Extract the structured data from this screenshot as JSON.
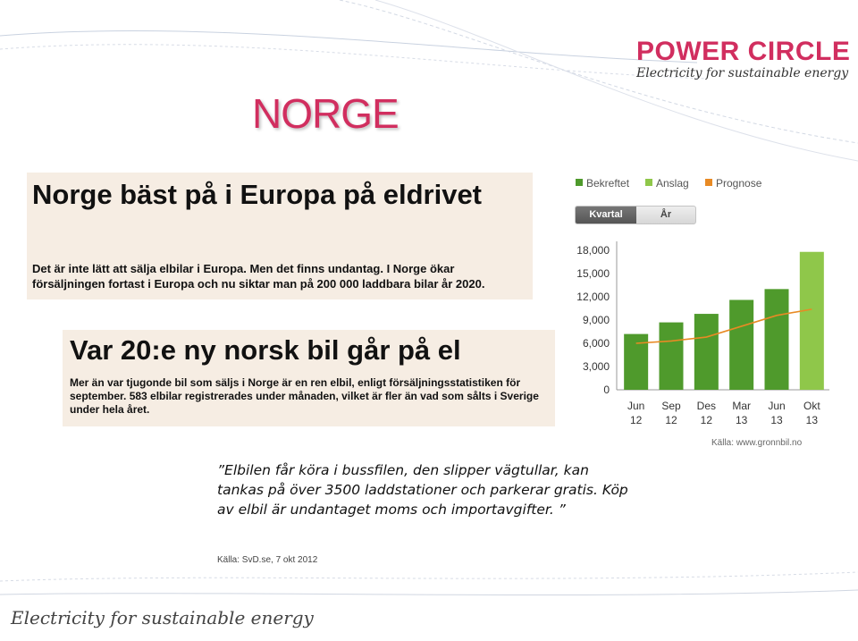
{
  "brand": {
    "name": "POWER CIRCLE",
    "tagline": "Electricity for sustainable energy",
    "color": "#d12e5f"
  },
  "slide": {
    "title": "NORGE"
  },
  "clippings": [
    {
      "headline": "Norge bäst på i Europa på eldrivet",
      "body": "Det är inte lätt att sälja elbilar i Europa. Men det finns undantag. I Norge ökar försäljningen fortast i Europa och nu siktar man på 200 000 laddbara bilar år 2020."
    },
    {
      "headline": "Var 20:e ny norsk bil går på el",
      "body": "Mer än var tjugonde bil som säljs i Norge är en ren elbil, enligt försäljningsstatistiken för september. 583 elbilar registrerades under månaden, vilket är fler än vad som sålts i Sverige under hela året."
    }
  ],
  "chart_data": {
    "type": "bar",
    "legend": [
      {
        "name": "Bekreftet",
        "color": "#4f9a2c"
      },
      {
        "name": "Anslag",
        "color": "#8fc74a"
      },
      {
        "name": "Prognose",
        "color": "#e88a24"
      }
    ],
    "toggle": [
      "Kvartal",
      "År"
    ],
    "categories": [
      [
        "Jun",
        "12"
      ],
      [
        "Sep",
        "12"
      ],
      [
        "Des",
        "12"
      ],
      [
        "Mar",
        "13"
      ],
      [
        "Jun",
        "13"
      ],
      [
        "Okt",
        "13"
      ]
    ],
    "series": [
      {
        "name": "Bekreftet",
        "type": "bar",
        "values": [
          7200,
          8700,
          9800,
          11600,
          13000,
          null
        ],
        "color": "#4f9a2c"
      },
      {
        "name": "Anslag",
        "type": "bar",
        "values": [
          null,
          null,
          null,
          null,
          null,
          17800
        ],
        "color": "#8fc74a"
      },
      {
        "name": "Prognose",
        "type": "line",
        "values": [
          6000,
          6300,
          6800,
          8200,
          9600,
          10400
        ],
        "color": "#e88a24"
      }
    ],
    "ylim": [
      0,
      18000
    ],
    "yticks": [
      "0",
      "3,000",
      "6,000",
      "9,000",
      "12,000",
      "15,000",
      "18,000"
    ],
    "grid": false,
    "legend_position": "top-left",
    "source": "Källa: www.gronnbil.no"
  },
  "quote": {
    "text": "”Elbilen får köra i bussfilen, den slipper vägtullar, kan tankas på över 3500 laddstationer och parkerar gratis. Köp av elbil är undantaget moms och importavgifter. ”",
    "source": "Källa: SvD.se, 7 okt 2012"
  },
  "footer": {
    "tagline": "Electricity for sustainable energy"
  }
}
